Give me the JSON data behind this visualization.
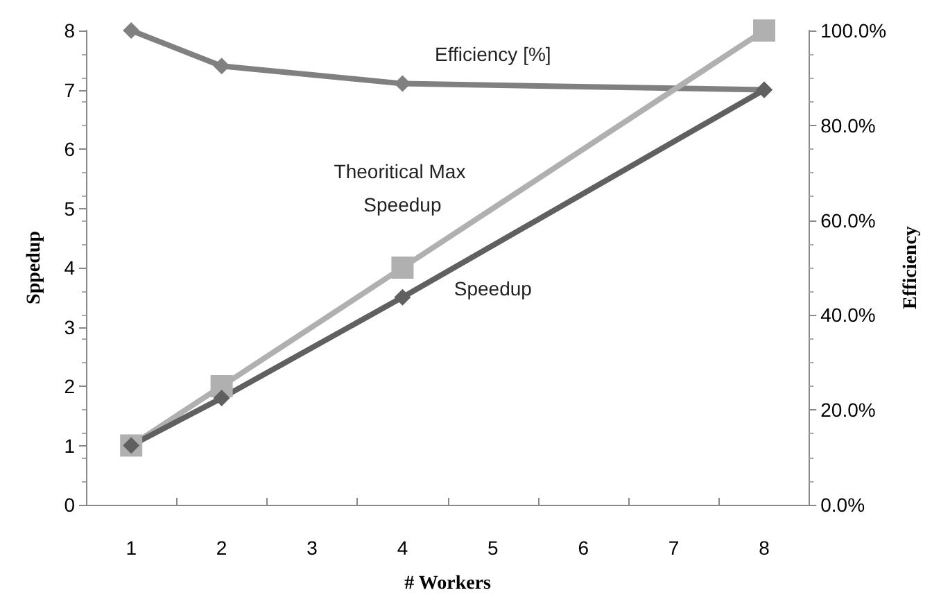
{
  "chart_data": {
    "type": "line",
    "xlabel": "# Workers",
    "ylabel": "Sppedup",
    "y2label": "Efficiency",
    "categories": [
      "1",
      "2",
      "3",
      "4",
      "5",
      "6",
      "7",
      "8"
    ],
    "series": [
      {
        "name": "Efficiency [%]",
        "color": "#808080",
        "axis": "y2",
        "marker": "diamond",
        "values": [
          100,
          92.5,
          null,
          88.8,
          null,
          null,
          null,
          87.5
        ]
      },
      {
        "name": "Theoritical Max Speedup",
        "color": "#b0b0b0",
        "marker": "square",
        "values": [
          1,
          2,
          null,
          4,
          null,
          null,
          null,
          8
        ]
      },
      {
        "name": "Speedup",
        "color": "#606060",
        "marker": "diamond",
        "values": [
          1,
          1.8,
          null,
          3.5,
          null,
          null,
          null,
          7
        ]
      }
    ],
    "ylim": [
      0,
      8
    ],
    "yticks": [
      0,
      1,
      2,
      3,
      4,
      5,
      6,
      7,
      8
    ],
    "y2lim": [
      0,
      100
    ],
    "y2ticks": [
      {
        "value": 0,
        "label": "0.0%"
      },
      {
        "value": 20,
        "label": "20.0%"
      },
      {
        "value": 40,
        "label": "40.0%"
      },
      {
        "value": 60,
        "label": "60.0%"
      },
      {
        "value": 80,
        "label": "80.0%"
      },
      {
        "value": 100,
        "label": "100.0%"
      }
    ],
    "grid": false,
    "legend": false
  }
}
